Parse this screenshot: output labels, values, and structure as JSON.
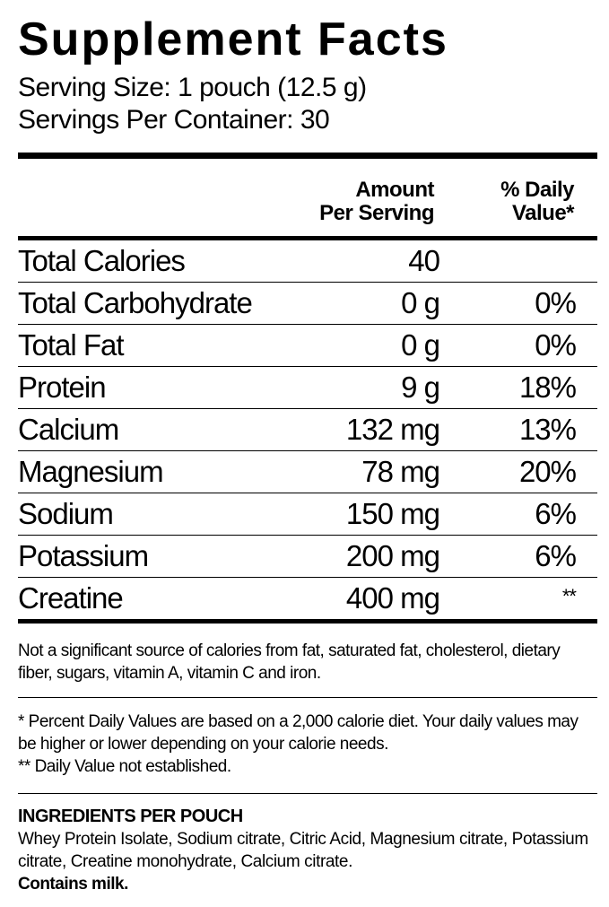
{
  "title": "Supplement Facts",
  "serving_size": "Serving Size: 1 pouch (12.5 g)",
  "servings_per_container": "Servings Per Container: 30",
  "header": {
    "amount_line1": "Amount",
    "amount_line2": "Per Serving",
    "dv_line1": "% Daily",
    "dv_line2": "Value*"
  },
  "nutrients": [
    {
      "name": "Total Calories",
      "amount": "40",
      "dv": ""
    },
    {
      "name": "Total Carbohydrate",
      "amount": "0 g",
      "dv": "0%"
    },
    {
      "name": "Total Fat",
      "amount": "0 g",
      "dv": "0%"
    },
    {
      "name": "Protein",
      "amount": "9 g",
      "dv": "18%"
    },
    {
      "name": "Calcium",
      "amount": "132 mg",
      "dv": "13%"
    },
    {
      "name": "Magnesium",
      "amount": "78 mg",
      "dv": "20%"
    },
    {
      "name": "Sodium",
      "amount": "150 mg",
      "dv": "6%"
    },
    {
      "name": "Potassium",
      "amount": "200 mg",
      "dv": "6%"
    },
    {
      "name": "Creatine",
      "amount": "400 mg",
      "dv": "**"
    }
  ],
  "not_significant_note": "Not a significant source of calories from fat, saturated fat, cholesterol, dietary fiber, sugars, vitamin A, vitamin C and iron.",
  "dv_footnote": "* Percent Daily Values are based on a 2,000 calorie diet. Your daily values may be higher or lower depending on your calorie needs.",
  "dv_not_established": "** Daily Value not established.",
  "ingredients": {
    "heading": "INGREDIENTS PER POUCH",
    "text": "Whey Protein Isolate, Sodium citrate, Citric Acid, Magnesium citrate, Potassium citrate, Creatine monohydrate, Calcium citrate.",
    "allergen": "Contains milk."
  }
}
